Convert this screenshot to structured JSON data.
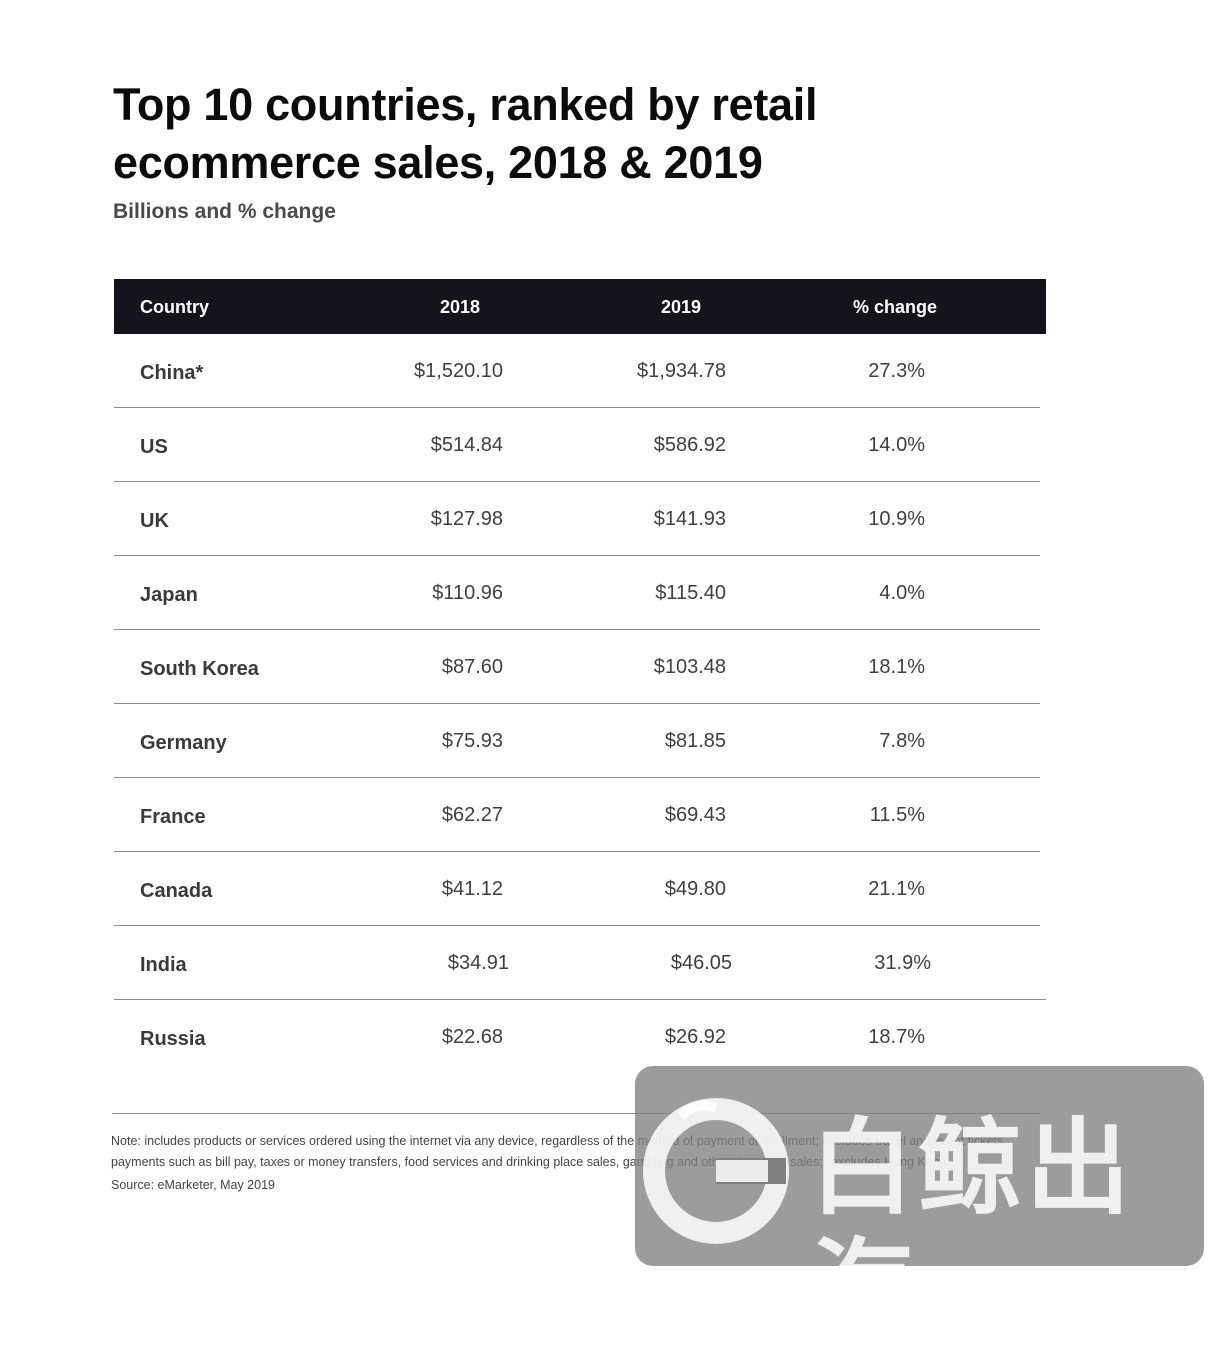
{
  "header": {
    "title": "Top 10 countries, ranked by retail ecommerce sales, 2018 & 2019",
    "subtitle": "Billions and % change"
  },
  "table": {
    "columns": [
      "Country",
      "2018",
      "2019",
      "% change"
    ],
    "rows": [
      {
        "country": "China*",
        "y2018": "$1,520.10",
        "y2019": "$1,934.78",
        "change": "27.3%"
      },
      {
        "country": "US",
        "y2018": "$514.84",
        "y2019": "$586.92",
        "change": "14.0%"
      },
      {
        "country": "UK",
        "y2018": "$127.98",
        "y2019": "$141.93",
        "change": "10.9%"
      },
      {
        "country": "Japan",
        "y2018": "$110.96",
        "y2019": "$115.40",
        "change": "4.0%"
      },
      {
        "country": "South Korea",
        "y2018": "$87.60",
        "y2019": "$103.48",
        "change": "18.1%"
      },
      {
        "country": "Germany",
        "y2018": "$75.93",
        "y2019": "$81.85",
        "change": "7.8%"
      },
      {
        "country": "France",
        "y2018": "$62.27",
        "y2019": "$69.43",
        "change": "11.5%"
      },
      {
        "country": "Canada",
        "y2018": "$41.12",
        "y2019": "$49.80",
        "change": "21.1%"
      },
      {
        "country": "India",
        "y2018": "$34.91",
        "y2019": "$46.05",
        "change": "31.9%"
      },
      {
        "country": "Russia",
        "y2018": "$22.68",
        "y2019": "$26.92",
        "change": "18.7%"
      }
    ]
  },
  "chart_data": {
    "type": "table",
    "title": "Top 10 countries, ranked by retail ecommerce sales, 2018 & 2019",
    "subtitle": "Billions and % change",
    "columns": [
      "Country",
      "2018",
      "2019",
      "% change"
    ],
    "categories": [
      "China*",
      "US",
      "UK",
      "Japan",
      "South Korea",
      "Germany",
      "France",
      "Canada",
      "India",
      "Russia"
    ],
    "series": [
      {
        "name": "2018",
        "values": [
          1520.1,
          514.84,
          127.98,
          110.96,
          87.6,
          75.93,
          62.27,
          41.12,
          34.91,
          22.68
        ]
      },
      {
        "name": "2019",
        "values": [
          1934.78,
          586.92,
          141.93,
          115.4,
          103.48,
          81.85,
          69.43,
          49.8,
          46.05,
          26.92
        ]
      },
      {
        "name": "% change",
        "values": [
          27.3,
          14.0,
          10.9,
          4.0,
          18.1,
          7.8,
          11.5,
          21.1,
          31.9,
          18.7
        ]
      }
    ]
  },
  "footer": {
    "note": "Note: includes products or services ordered using the internet via any device, regardless of the method of payment or fulfillment; excludes travel and event tickets, payments such as bill pay, taxes or money transfers, food services and drinking place sales, gambling and other vice good sales; *excludes Hong Kong",
    "source": "Source: eMarketer, May 2019"
  },
  "watermark": {
    "text": "白鲸出海",
    "icon": "whale-logo-icon"
  },
  "colors": {
    "header_bg": "#14141c",
    "header_text": "#ffffff",
    "rule": "#8a8a8a"
  }
}
